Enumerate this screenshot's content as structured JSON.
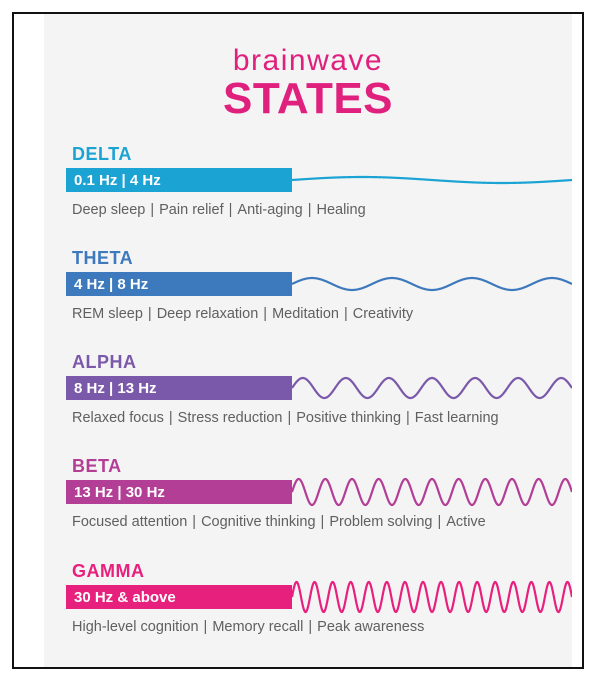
{
  "header": {
    "title_top": "brainwave",
    "title_main": "STATES"
  },
  "states": [
    {
      "name": "DELTA",
      "freq": "0.1 Hz | 4 Hz",
      "color": "#1aa3d3",
      "tags": [
        "Deep sleep",
        "Pain relief",
        "Anti-aging",
        "Healing"
      ],
      "wave_cycles": 1.0,
      "wave_amplitude": 3
    },
    {
      "name": "THETA",
      "freq": "4 Hz | 8 Hz",
      "color": "#3d79bd",
      "tags": [
        "REM sleep",
        "Deep relaxation",
        "Meditation",
        "Creativity"
      ],
      "wave_cycles": 3.5,
      "wave_amplitude": 6
    },
    {
      "name": "ALPHA",
      "freq": "8 Hz | 13 Hz",
      "color": "#7b59aa",
      "tags": [
        "Relaxed focus",
        "Stress reduction",
        "Positive thinking",
        "Fast learning"
      ],
      "wave_cycles": 6.5,
      "wave_amplitude": 10
    },
    {
      "name": "BETA",
      "freq": "13 Hz | 30 Hz",
      "color": "#b33e96",
      "tags": [
        "Focused attention",
        "Cognitive thinking",
        "Problem solving",
        "Active"
      ],
      "wave_cycles": 10.5,
      "wave_amplitude": 13
    },
    {
      "name": "GAMMA",
      "freq": "30 Hz & above",
      "color": "#e8207d",
      "tags": [
        "High-level cognition",
        "Memory recall",
        "Peak awareness"
      ],
      "wave_cycles": 15.5,
      "wave_amplitude": 15
    }
  ]
}
